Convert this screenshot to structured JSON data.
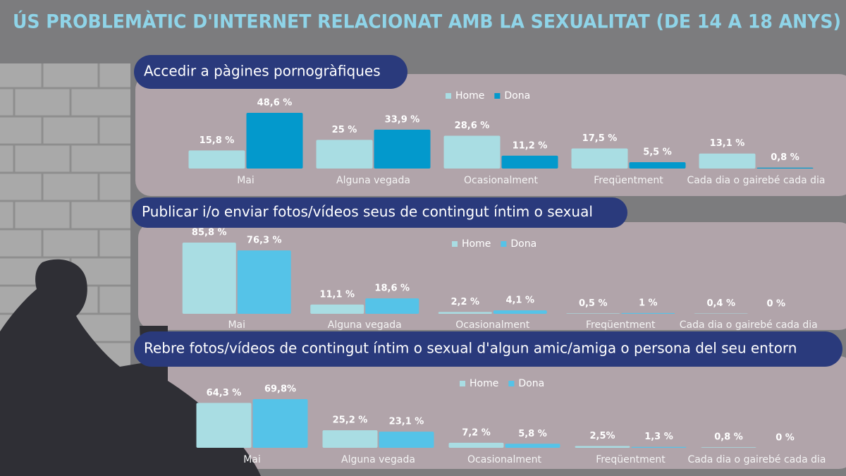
{
  "title": "ÚS PROBLEMÀTIC D'INTERNET RELACIONAT AMB LA SEXUALITAT (DE 14 A 18 ANYS)",
  "chart_data": [
    {
      "type": "bar",
      "title": "Accedir a pàgines pornogràfiques",
      "categories": [
        "Mai",
        "Alguna vegada",
        "Ocasionalment",
        "Freqüentment",
        "Cada dia o gairebé cada dia"
      ],
      "series": [
        {
          "name": "Home",
          "color": "#a9dde3",
          "values": [
            15.8,
            25,
            28.6,
            17.5,
            13.1
          ],
          "value_labels": [
            "15,8 %",
            "25 %",
            "28,6 %",
            "17,5 %",
            "13,1 %"
          ]
        },
        {
          "name": "Dona",
          "color": "#0399cc",
          "values": [
            48.6,
            33.9,
            11.2,
            5.5,
            0.8
          ],
          "value_labels": [
            "48,6 %",
            "33,9 %",
            "11,2 %",
            "5,5 %",
            "0,8 %"
          ]
        }
      ]
    },
    {
      "type": "bar",
      "title": "Publicar i/o enviar fotos/vídeos seus de contingut íntim o sexual",
      "categories": [
        "Mai",
        "Alguna vegada",
        "Ocasionalment",
        "Freqüentment",
        "Cada dia o gairebé cada dia"
      ],
      "series": [
        {
          "name": "Home",
          "color": "#a9dde3",
          "values": [
            85.8,
            11.1,
            2.2,
            0.5,
            0.4
          ],
          "value_labels": [
            "85,8 %",
            "11,1 %",
            "2,2 %",
            "0,5 %",
            "0,4 %"
          ]
        },
        {
          "name": "Dona",
          "color": "#55c3e8",
          "values": [
            76.3,
            18.6,
            4.1,
            1,
            0
          ],
          "value_labels": [
            "76,3 %",
            "18,6 %",
            "4,1 %",
            "1 %",
            "0 %"
          ]
        }
      ]
    },
    {
      "type": "bar",
      "title": "Rebre fotos/vídeos de contingut íntim o sexual d'algun amic/amiga o persona del seu entorn",
      "categories": [
        "Mai",
        "Alguna vegada",
        "Ocasionalment",
        "Freqüentment",
        "Cada dia o gairebé cada dia"
      ],
      "series": [
        {
          "name": "Home",
          "color": "#a9dde3",
          "values": [
            64.3,
            25.2,
            7.2,
            2.5,
            0.8
          ],
          "value_labels": [
            "64,3 %",
            "25,2 %",
            "7,2 %",
            "2,5%",
            "0,8 %"
          ]
        },
        {
          "name": "Dona",
          "color": "#55c3e8",
          "values": [
            69.8,
            23.1,
            5.8,
            1.3,
            0
          ],
          "value_labels": [
            "69,8%",
            "23,1 %",
            "5,8 %",
            "1,3 %",
            "0 %"
          ]
        }
      ]
    }
  ]
}
